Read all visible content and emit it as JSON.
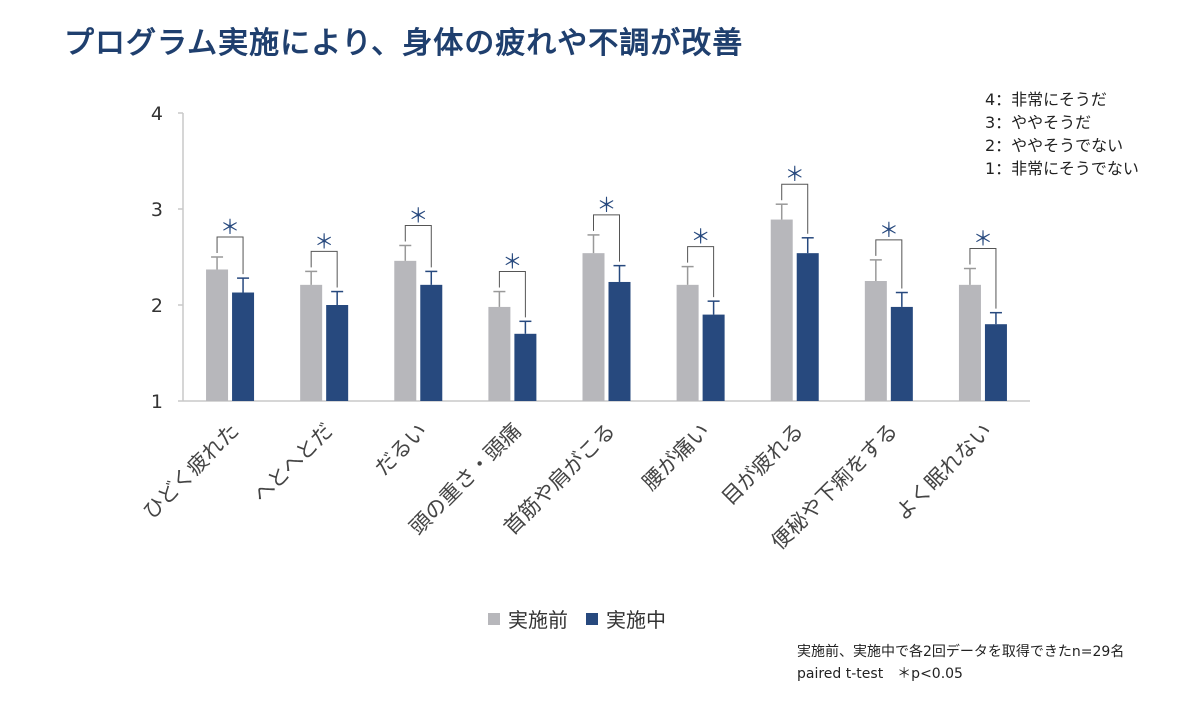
{
  "title": "プログラム実施により、身体の疲れや不調が改善",
  "scale_legend": [
    "4：非常にそうだ",
    "3：ややそうだ",
    "2：ややそうでない",
    "1：非常にそうでない"
  ],
  "footnote": {
    "line1": "実施前、実施中で各2回データを取得できたn=29名",
    "line2": "paired t-test　＊p<0.05"
  },
  "colors": {
    "before": "#b7b7bb",
    "during": "#27497e",
    "title": "#1f3f6e",
    "axis": "#c8c8c8",
    "sig": "#27497e"
  },
  "chart_data": {
    "type": "bar",
    "title": "プログラム実施により、身体の疲れや不調が改善",
    "categories": [
      "ひどく疲れた",
      "へとへとだ",
      "だるい",
      "頭の重さ・頭痛",
      "首筋や肩がこる",
      "腰が痛い",
      "目が疲れる",
      "便秘や下痢をする",
      "よく眠れない"
    ],
    "series": [
      {
        "name": "実施前",
        "values": [
          2.37,
          2.21,
          2.46,
          1.98,
          2.54,
          2.21,
          2.89,
          2.25,
          2.21
        ],
        "errors": [
          0.13,
          0.14,
          0.16,
          0.16,
          0.19,
          0.19,
          0.16,
          0.22,
          0.17
        ]
      },
      {
        "name": "実施中",
        "values": [
          2.13,
          2.0,
          2.21,
          1.7,
          2.24,
          1.9,
          2.54,
          1.98,
          1.8
        ],
        "errors": [
          0.15,
          0.14,
          0.14,
          0.13,
          0.17,
          0.14,
          0.16,
          0.15,
          0.12
        ]
      }
    ],
    "significance": [
      "＊",
      "＊",
      "＊",
      "＊",
      "＊",
      "＊",
      "＊",
      "＊",
      "＊"
    ],
    "ylim": [
      1,
      4
    ],
    "yticks": [
      1,
      2,
      3,
      4
    ],
    "xlabel": "",
    "ylabel": "",
    "legend_position": "bottom"
  }
}
